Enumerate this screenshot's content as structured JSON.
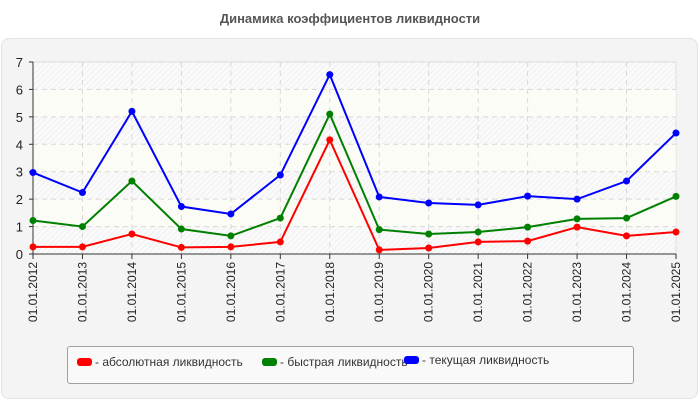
{
  "chart_data": {
    "type": "line",
    "title": "Динамика коэффициентов ликвидности",
    "xlabel": "",
    "ylabel": "",
    "ylim": [
      0,
      7
    ],
    "yticks": [
      0,
      1,
      2,
      3,
      4,
      5,
      6,
      7
    ],
    "grid": true,
    "legend_position": "bottom",
    "categories": [
      "01.01.2012",
      "01.01.2013",
      "01.01.2014",
      "01.01.2015",
      "01.01.2016",
      "01.01.2017",
      "01.01.2018",
      "01.01.2019",
      "01.01.2020",
      "01.01.2021",
      "01.01.2022",
      "01.01.2023",
      "01.01.2024",
      "01.01.2025"
    ],
    "series": [
      {
        "name": "абсолютная ликвидность",
        "color": "#ff0000",
        "values": [
          0.26,
          0.26,
          0.73,
          0.24,
          0.26,
          0.44,
          4.16,
          0.15,
          0.22,
          0.44,
          0.47,
          0.98,
          0.66,
          0.8
        ]
      },
      {
        "name": "быстрая ликвидность",
        "color": "#008000",
        "values": [
          1.22,
          1.0,
          2.66,
          0.91,
          0.66,
          1.31,
          5.1,
          0.89,
          0.73,
          0.8,
          0.98,
          1.28,
          1.31,
          2.1
        ]
      },
      {
        "name": "текущая ликвидность",
        "color": "#0000ff",
        "values": [
          2.97,
          2.24,
          5.2,
          1.73,
          1.46,
          2.88,
          6.54,
          2.08,
          1.86,
          1.79,
          2.11,
          2.0,
          2.66,
          4.41
        ]
      }
    ]
  },
  "legend": {
    "items": [
      {
        "label": "- абсолютная ликвидность",
        "color": "#ff0000"
      },
      {
        "label": "- быстрая ликвидность",
        "color": "#008000"
      },
      {
        "label": "- текущая ликвидность",
        "color": "#0000ff"
      }
    ]
  }
}
